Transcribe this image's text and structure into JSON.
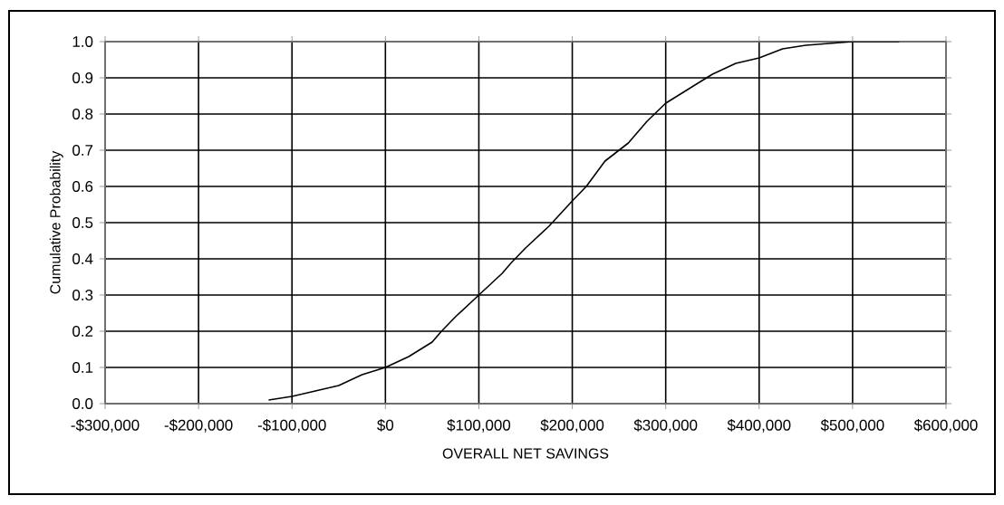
{
  "chart_data": {
    "type": "line",
    "xlabel": "OVERALL NET SAVINGS",
    "ylabel": "Cumulative Probability",
    "x": [
      -125000,
      -100000,
      -75000,
      -50000,
      -25000,
      0,
      25000,
      50000,
      60000,
      75000,
      100000,
      125000,
      135000,
      150000,
      175000,
      200000,
      215000,
      235000,
      260000,
      280000,
      300000,
      325000,
      350000,
      375000,
      400000,
      425000,
      450000,
      475000,
      500000,
      550000
    ],
    "series": [
      {
        "color": "#000000",
        "values": [
          0.01,
          0.02,
          0.035,
          0.05,
          0.08,
          0.1,
          0.13,
          0.17,
          0.2,
          0.24,
          0.3,
          0.36,
          0.39,
          0.43,
          0.49,
          0.56,
          0.6,
          0.67,
          0.72,
          0.78,
          0.83,
          0.87,
          0.91,
          0.94,
          0.955,
          0.98,
          0.99,
          0.995,
          1.0,
          1.0
        ]
      }
    ],
    "xlim": [
      -300000,
      600000
    ],
    "xticks": [
      {
        "value": -300000,
        "label": "-$300,000"
      },
      {
        "value": -200000,
        "label": "-$200,000"
      },
      {
        "value": -100000,
        "label": "-$100,000"
      },
      {
        "value": 0,
        "label": "$0"
      },
      {
        "value": 100000,
        "label": "$100,000"
      },
      {
        "value": 200000,
        "label": "$200,000"
      },
      {
        "value": 300000,
        "label": "$300,000"
      },
      {
        "value": 400000,
        "label": "$400,000"
      },
      {
        "value": 500000,
        "label": "$500,000"
      },
      {
        "value": 600000,
        "label": "$600,000"
      }
    ],
    "ylim": [
      0,
      1
    ],
    "yticks": [
      {
        "value": 0,
        "label": "0.0"
      },
      {
        "value": 0.1,
        "label": "0.1"
      },
      {
        "value": 0.2,
        "label": "0.2"
      },
      {
        "value": 0.3,
        "label": "0.3"
      },
      {
        "value": 0.4,
        "label": "0.4"
      },
      {
        "value": 0.5,
        "label": "0.5"
      },
      {
        "value": 0.6,
        "label": "0.6"
      },
      {
        "value": 0.7,
        "label": "0.7"
      },
      {
        "value": 0.8,
        "label": "0.8"
      },
      {
        "value": 0.9,
        "label": "0.9"
      },
      {
        "value": 1.0,
        "label": "1.0"
      }
    ],
    "grid": true,
    "marker": "none",
    "line_style": "solid"
  }
}
